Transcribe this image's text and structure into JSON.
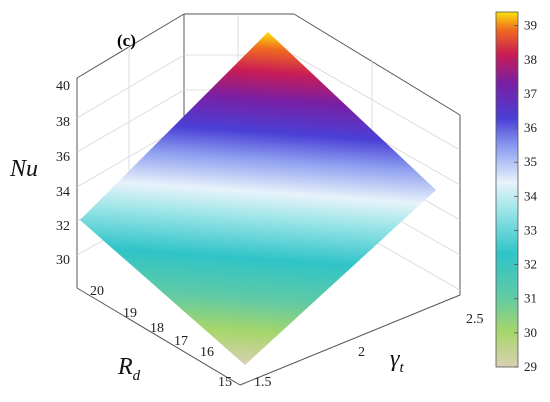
{
  "chart_data": {
    "type": "surface3d",
    "panel_label": "(c)",
    "zlabel": "Nu",
    "xlabel": "R_d",
    "ylabel": "γ_t",
    "label_parts": {
      "z": {
        "base": "Nu",
        "sub": ""
      },
      "x": {
        "base": "R",
        "sub": "d"
      },
      "y": {
        "base": "γ",
        "sub": "t"
      }
    },
    "x_ticks": [
      "15",
      "16",
      "17",
      "18",
      "19",
      "20"
    ],
    "y_ticks": [
      "1.5",
      "2",
      "2.5"
    ],
    "z_ticks": [
      "30",
      "32",
      "34",
      "36",
      "38",
      "40"
    ],
    "colorbar": {
      "ticks": [
        "29",
        "30",
        "31",
        "32",
        "33",
        "34",
        "35",
        "36",
        "37",
        "38",
        "39"
      ],
      "range": [
        29,
        39.4
      ],
      "colormap": "parula"
    },
    "surface_corners": [
      {
        "Rd": 15,
        "gamma_t": 1.5,
        "Nu": 29.0
      },
      {
        "Rd": 20,
        "gamma_t": 1.5,
        "Nu": 32.2
      },
      {
        "Rd": 15,
        "gamma_t": 2.5,
        "Nu": 34.9
      },
      {
        "Rd": 20,
        "gamma_t": 2.5,
        "Nu": 39.4
      }
    ]
  }
}
